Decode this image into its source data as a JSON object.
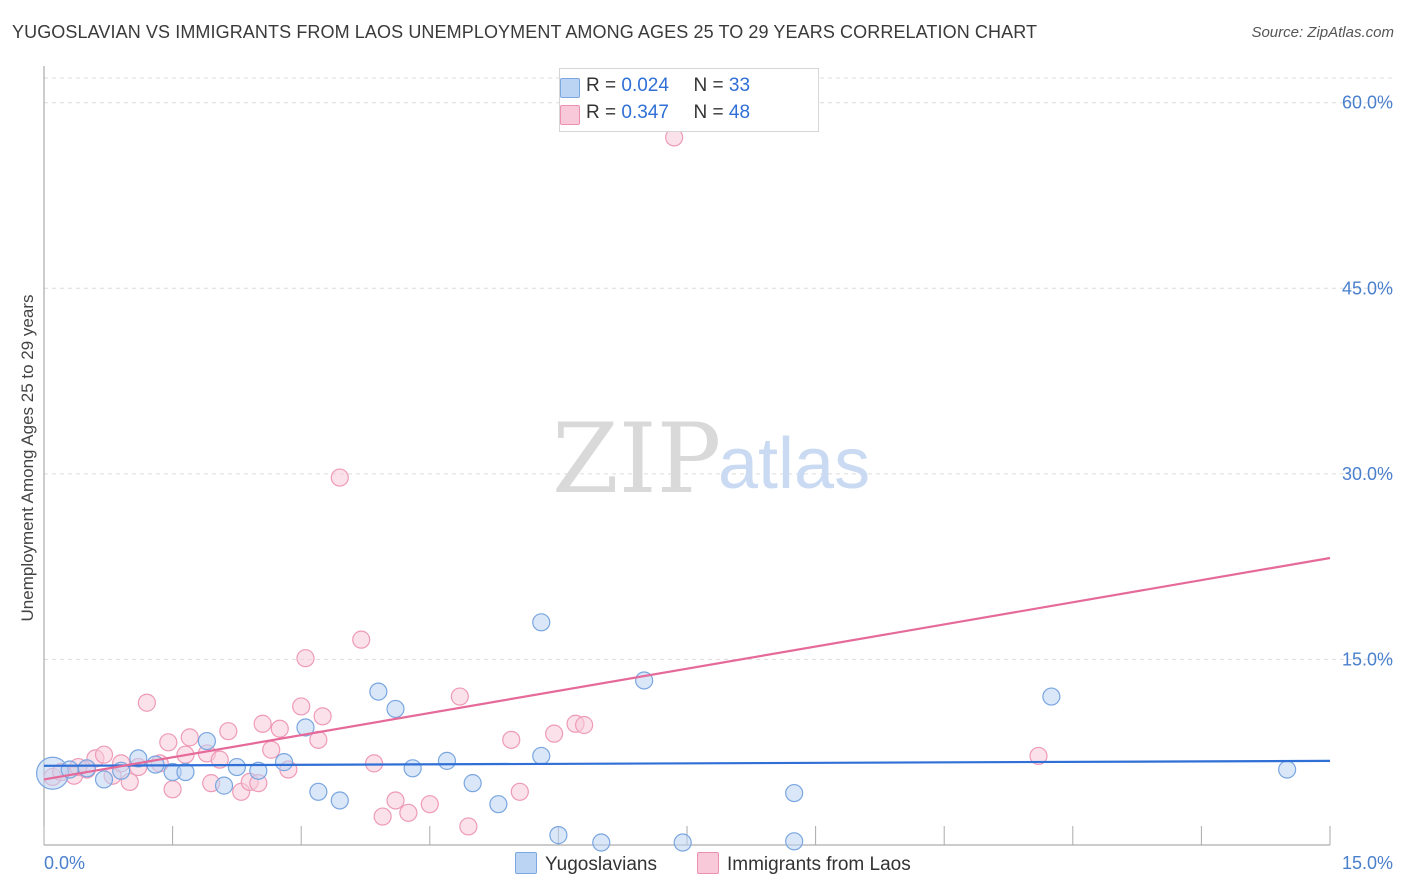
{
  "title": "YUGOSLAVIAN VS IMMIGRANTS FROM LAOS UNEMPLOYMENT AMONG AGES 25 TO 29 YEARS CORRELATION CHART",
  "source": "Source: ZipAtlas.com",
  "watermark": {
    "zip": "ZIP",
    "atlas": "atlas"
  },
  "legend": {
    "r_label": "R =",
    "n_label": "N =",
    "rows": [
      {
        "r": "0.024",
        "n": "33",
        "color": "#a9c8f0",
        "border": "#7da7e0"
      },
      {
        "r": "0.347",
        "n": "48",
        "color": "#f7bcd0",
        "border": "#ee8fb0"
      }
    ]
  },
  "bottom_legend": [
    "Yugoslavians",
    "Immigrants from Laos"
  ],
  "chart_data": {
    "type": "scatter",
    "title": "YUGOSLAVIAN VS IMMIGRANTS FROM LAOS UNEMPLOYMENT AMONG AGES 25 TO 29 YEARS CORRELATION CHART",
    "xlabel": "",
    "ylabel": "Unemployment Among Ages 25 to 29 years",
    "xlim": [
      0,
      15
    ],
    "ylim": [
      0,
      62
    ],
    "x_tick_labels": [
      "0.0%",
      "15.0%"
    ],
    "y_ticks": [
      15,
      30,
      45,
      60
    ],
    "y_tick_labels": [
      "15.0%",
      "30.0%",
      "45.0%",
      "60.0%"
    ],
    "grid": true,
    "series": [
      {
        "name": "Yugoslavians",
        "color": "#7aa6e0",
        "fill": "#bcd4f3",
        "trend": {
          "x": [
            0,
            15
          ],
          "y": [
            6.4,
            6.8
          ],
          "color": "#2f6fd6"
        },
        "points": [
          {
            "x": 0.1,
            "y": 5.8,
            "big": true
          },
          {
            "x": 0.3,
            "y": 6.1
          },
          {
            "x": 0.5,
            "y": 6.2
          },
          {
            "x": 0.7,
            "y": 5.3
          },
          {
            "x": 0.9,
            "y": 6.0
          },
          {
            "x": 1.1,
            "y": 7.0
          },
          {
            "x": 1.3,
            "y": 6.5
          },
          {
            "x": 1.5,
            "y": 5.9
          },
          {
            "x": 1.65,
            "y": 5.9
          },
          {
            "x": 1.9,
            "y": 8.4
          },
          {
            "x": 2.1,
            "y": 4.8
          },
          {
            "x": 2.25,
            "y": 6.3
          },
          {
            "x": 2.5,
            "y": 6.0
          },
          {
            "x": 2.8,
            "y": 6.7
          },
          {
            "x": 3.05,
            "y": 9.5
          },
          {
            "x": 3.2,
            "y": 4.3
          },
          {
            "x": 3.45,
            "y": 3.6
          },
          {
            "x": 3.9,
            "y": 12.4
          },
          {
            "x": 4.1,
            "y": 11.0
          },
          {
            "x": 4.3,
            "y": 6.2
          },
          {
            "x": 4.7,
            "y": 6.8
          },
          {
            "x": 5.0,
            "y": 5.0
          },
          {
            "x": 5.3,
            "y": 3.3
          },
          {
            "x": 5.8,
            "y": 7.2
          },
          {
            "x": 5.8,
            "y": 18.0
          },
          {
            "x": 6.0,
            "y": 0.8
          },
          {
            "x": 6.5,
            "y": 0.2
          },
          {
            "x": 7.0,
            "y": 13.3
          },
          {
            "x": 7.45,
            "y": 0.2
          },
          {
            "x": 8.75,
            "y": 0.3
          },
          {
            "x": 8.75,
            "y": 4.2
          },
          {
            "x": 11.75,
            "y": 12.0
          },
          {
            "x": 14.5,
            "y": 6.1
          }
        ]
      },
      {
        "name": "Immigrants from Laos",
        "color": "#ee9ab8",
        "fill": "#f8cad9",
        "trend": {
          "x": [
            0,
            15
          ],
          "y": [
            5.3,
            23.2
          ],
          "color": "#e56a9a"
        },
        "points": [
          {
            "x": 0.1,
            "y": 5.5
          },
          {
            "x": 0.2,
            "y": 5.9
          },
          {
            "x": 0.35,
            "y": 5.6
          },
          {
            "x": 0.5,
            "y": 6.1
          },
          {
            "x": 0.6,
            "y": 7.0
          },
          {
            "x": 0.7,
            "y": 7.3
          },
          {
            "x": 0.8,
            "y": 5.6
          },
          {
            "x": 1.0,
            "y": 5.1
          },
          {
            "x": 1.1,
            "y": 6.3
          },
          {
            "x": 1.2,
            "y": 11.5
          },
          {
            "x": 1.35,
            "y": 6.6
          },
          {
            "x": 1.45,
            "y": 8.3
          },
          {
            "x": 1.5,
            "y": 4.5
          },
          {
            "x": 1.65,
            "y": 7.3
          },
          {
            "x": 1.7,
            "y": 8.7
          },
          {
            "x": 1.9,
            "y": 7.4
          },
          {
            "x": 1.95,
            "y": 5.0
          },
          {
            "x": 2.05,
            "y": 6.9
          },
          {
            "x": 2.15,
            "y": 9.2
          },
          {
            "x": 2.3,
            "y": 4.3
          },
          {
            "x": 2.4,
            "y": 5.1
          },
          {
            "x": 2.55,
            "y": 9.8
          },
          {
            "x": 2.65,
            "y": 7.7
          },
          {
            "x": 2.75,
            "y": 9.4
          },
          {
            "x": 2.85,
            "y": 6.1
          },
          {
            "x": 3.0,
            "y": 11.2
          },
          {
            "x": 3.05,
            "y": 15.1
          },
          {
            "x": 3.2,
            "y": 8.5
          },
          {
            "x": 3.25,
            "y": 10.4
          },
          {
            "x": 3.45,
            "y": 29.7
          },
          {
            "x": 3.7,
            "y": 16.6
          },
          {
            "x": 3.85,
            "y": 6.6
          },
          {
            "x": 3.95,
            "y": 2.3
          },
          {
            "x": 4.1,
            "y": 3.6
          },
          {
            "x": 4.25,
            "y": 2.6
          },
          {
            "x": 4.5,
            "y": 3.3
          },
          {
            "x": 4.85,
            "y": 12.0
          },
          {
            "x": 4.95,
            "y": 1.5
          },
          {
            "x": 5.45,
            "y": 8.5
          },
          {
            "x": 5.55,
            "y": 4.3
          },
          {
            "x": 5.95,
            "y": 9.0
          },
          {
            "x": 6.2,
            "y": 9.8
          },
          {
            "x": 6.3,
            "y": 9.7
          },
          {
            "x": 7.35,
            "y": 57.2
          },
          {
            "x": 11.6,
            "y": 7.2
          },
          {
            "x": 0.4,
            "y": 6.3
          },
          {
            "x": 0.9,
            "y": 6.6
          },
          {
            "x": 2.5,
            "y": 5.0
          }
        ]
      }
    ]
  }
}
